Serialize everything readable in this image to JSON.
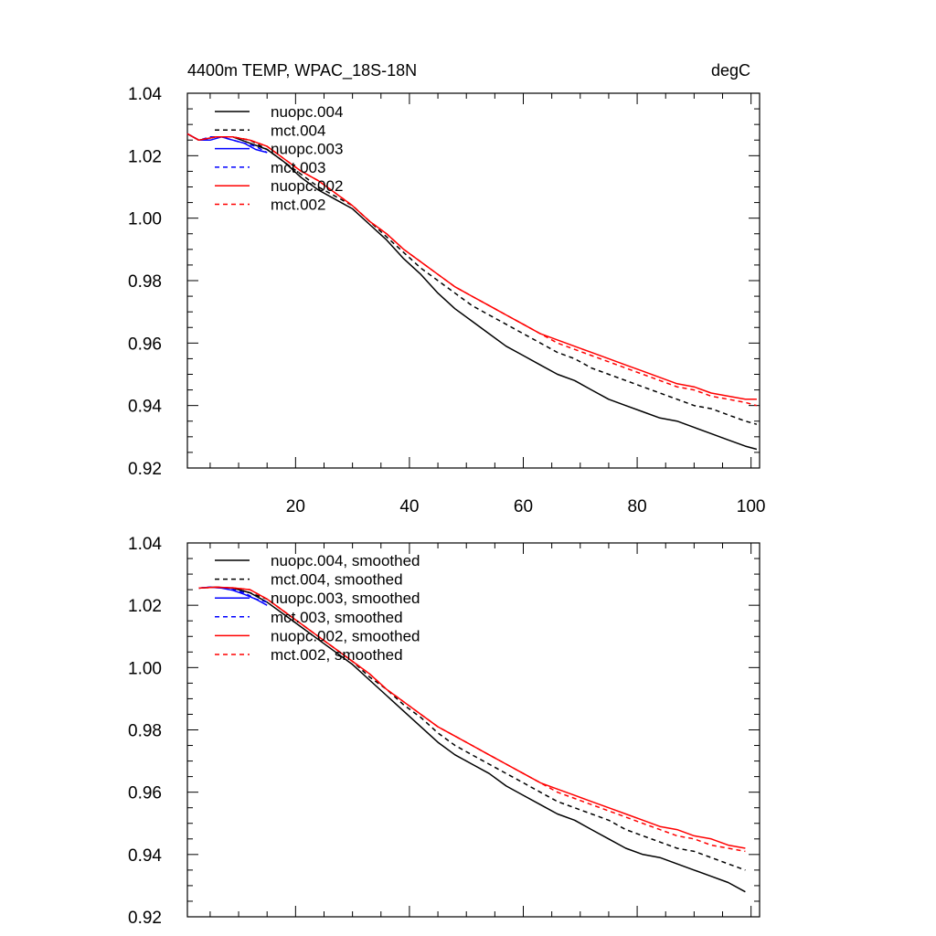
{
  "chart_data": [
    {
      "type": "line",
      "title_left": "4400m TEMP, WPAC_18S-18N",
      "title_right": "degC",
      "xlabel": "",
      "ylabel": "",
      "xlim": [
        1,
        101.5
      ],
      "ylim": [
        0.92,
        1.04
      ],
      "x_ticks": [
        20,
        40,
        60,
        80,
        100
      ],
      "y_ticks": [
        0.92,
        0.94,
        0.96,
        0.98,
        1.0,
        1.02,
        1.04
      ],
      "y_tick_labels": [
        "0.92",
        "0.94",
        "0.96",
        "0.98",
        "1.00",
        "1.02",
        "1.04"
      ],
      "x_tick_labels": [
        "20",
        "40",
        "60",
        "80",
        "100"
      ],
      "legend_position": "top-left",
      "series": [
        {
          "name": "nuopc.004",
          "color": "#000000",
          "dash": "solid",
          "x": [
            1,
            3,
            6,
            9,
            12,
            15,
            18,
            21,
            24,
            27,
            30,
            33,
            36,
            39,
            42,
            45,
            48,
            51,
            54,
            57,
            60,
            63,
            66,
            69,
            72,
            75,
            78,
            81,
            84,
            87,
            90,
            93,
            96,
            99,
            101
          ],
          "y": [
            1.027,
            1.025,
            1.026,
            1.026,
            1.024,
            1.022,
            1.018,
            1.013,
            1.009,
            1.006,
            1.003,
            0.998,
            0.993,
            0.987,
            0.982,
            0.976,
            0.971,
            0.967,
            0.963,
            0.959,
            0.956,
            0.953,
            0.95,
            0.948,
            0.945,
            0.942,
            0.94,
            0.938,
            0.936,
            0.935,
            0.933,
            0.931,
            0.929,
            0.927,
            0.926
          ]
        },
        {
          "name": "mct.004",
          "color": "#000000",
          "dash": "dashed",
          "x": [
            1,
            3,
            6,
            9,
            12,
            15,
            18,
            21,
            24,
            27,
            30,
            33,
            36,
            39,
            42,
            45,
            48,
            51,
            54,
            57,
            60,
            63,
            66,
            69,
            72,
            75,
            78,
            81,
            84,
            87,
            90,
            93,
            96,
            99,
            101
          ],
          "y": [
            1.027,
            1.025,
            1.026,
            1.026,
            1.025,
            1.022,
            1.018,
            1.014,
            1.01,
            1.007,
            1.004,
            0.999,
            0.994,
            0.989,
            0.984,
            0.98,
            0.976,
            0.972,
            0.969,
            0.966,
            0.963,
            0.96,
            0.957,
            0.955,
            0.952,
            0.95,
            0.948,
            0.946,
            0.944,
            0.942,
            0.94,
            0.939,
            0.937,
            0.935,
            0.934
          ]
        },
        {
          "name": "nuopc.003",
          "color": "#0000ff",
          "dash": "solid",
          "x": [
            1,
            3,
            5,
            7,
            9,
            11,
            13,
            15
          ],
          "y": [
            1.027,
            1.025,
            1.025,
            1.026,
            1.025,
            1.024,
            1.022,
            1.021
          ]
        },
        {
          "name": "mct.003",
          "color": "#0000ff",
          "dash": "dashed",
          "x": [
            1,
            3,
            5,
            7,
            9,
            11,
            13,
            15
          ],
          "y": [
            1.027,
            1.025,
            1.026,
            1.026,
            1.025,
            1.024,
            1.023,
            1.021
          ]
        },
        {
          "name": "nuopc.002",
          "color": "#ff0000",
          "dash": "solid",
          "x": [
            1,
            3,
            6,
            9,
            12,
            15,
            18,
            21,
            24,
            27,
            30,
            33,
            36,
            39,
            42,
            45,
            48,
            51,
            54,
            57,
            60,
            63,
            66,
            69,
            72,
            75,
            78,
            81,
            84,
            87,
            90,
            93,
            96,
            99,
            101
          ],
          "y": [
            1.027,
            1.025,
            1.026,
            1.026,
            1.025,
            1.023,
            1.019,
            1.015,
            1.012,
            1.008,
            1.004,
            0.999,
            0.995,
            0.99,
            0.986,
            0.982,
            0.978,
            0.975,
            0.972,
            0.969,
            0.966,
            0.963,
            0.961,
            0.959,
            0.957,
            0.955,
            0.953,
            0.951,
            0.949,
            0.947,
            0.946,
            0.944,
            0.943,
            0.942,
            0.942
          ]
        },
        {
          "name": "mct.002",
          "color": "#ff0000",
          "dash": "dashed",
          "x": [
            1,
            3,
            6,
            9,
            12,
            15,
            18,
            21,
            24,
            27,
            30,
            33,
            36,
            39,
            42,
            45,
            48,
            51,
            54,
            57,
            60,
            63,
            66,
            69,
            72,
            75,
            78,
            81,
            84,
            87,
            90,
            93,
            96,
            99,
            101
          ],
          "y": [
            1.027,
            1.025,
            1.026,
            1.026,
            1.025,
            1.023,
            1.019,
            1.015,
            1.012,
            1.008,
            1.004,
            0.999,
            0.995,
            0.99,
            0.986,
            0.982,
            0.978,
            0.975,
            0.972,
            0.969,
            0.966,
            0.963,
            0.96,
            0.958,
            0.956,
            0.954,
            0.952,
            0.95,
            0.948,
            0.946,
            0.945,
            0.943,
            0.942,
            0.941,
            0.94
          ]
        }
      ]
    },
    {
      "type": "line",
      "xlabel": "",
      "ylabel": "",
      "xlim": [
        1,
        101.5
      ],
      "ylim": [
        0.92,
        1.04
      ],
      "x_ticks": [
        20,
        40,
        60,
        80,
        100
      ],
      "y_ticks": [
        0.92,
        0.94,
        0.96,
        0.98,
        1.0,
        1.02,
        1.04
      ],
      "y_tick_labels": [
        "0.92",
        "0.94",
        "0.96",
        "0.98",
        "1.00",
        "1.02",
        "1.04"
      ],
      "legend_position": "top-left",
      "series": [
        {
          "name": "nuopc.004, smoothed",
          "color": "#000000",
          "dash": "solid",
          "x": [
            3,
            6,
            9,
            12,
            15,
            18,
            21,
            24,
            27,
            30,
            33,
            36,
            39,
            42,
            45,
            48,
            51,
            54,
            57,
            60,
            63,
            66,
            69,
            72,
            75,
            78,
            81,
            84,
            87,
            90,
            93,
            96,
            99
          ],
          "y": [
            1.0255,
            1.0258,
            1.0255,
            1.024,
            1.021,
            1.017,
            1.013,
            1.009,
            1.005,
            1.001,
            0.996,
            0.991,
            0.986,
            0.981,
            0.976,
            0.972,
            0.969,
            0.966,
            0.962,
            0.959,
            0.956,
            0.953,
            0.951,
            0.948,
            0.945,
            0.942,
            0.94,
            0.939,
            0.937,
            0.935,
            0.933,
            0.931,
            0.928
          ]
        },
        {
          "name": "mct.004, smoothed",
          "color": "#000000",
          "dash": "dashed",
          "x": [
            3,
            6,
            9,
            12,
            15,
            18,
            21,
            24,
            27,
            30,
            33,
            36,
            39,
            42,
            45,
            48,
            51,
            54,
            57,
            60,
            63,
            66,
            69,
            72,
            75,
            78,
            81,
            84,
            87,
            90,
            93,
            96,
            99
          ],
          "y": [
            1.0255,
            1.0258,
            1.0255,
            1.024,
            1.022,
            1.018,
            1.014,
            1.01,
            1.006,
            1.002,
            0.997,
            0.993,
            0.988,
            0.984,
            0.979,
            0.975,
            0.972,
            0.969,
            0.966,
            0.963,
            0.96,
            0.957,
            0.955,
            0.953,
            0.951,
            0.948,
            0.946,
            0.944,
            0.942,
            0.941,
            0.939,
            0.937,
            0.935
          ]
        },
        {
          "name": "nuopc.003, smoothed",
          "color": "#0000ff",
          "dash": "solid",
          "x": [
            3,
            5,
            7,
            9,
            11,
            13,
            15
          ],
          "y": [
            1.0255,
            1.0258,
            1.0255,
            1.0248,
            1.0235,
            1.022,
            1.02
          ]
        },
        {
          "name": "mct.003, smoothed",
          "color": "#0000ff",
          "dash": "dashed",
          "x": [
            3,
            5,
            7,
            9,
            11,
            13,
            15
          ],
          "y": [
            1.0255,
            1.0258,
            1.0256,
            1.025,
            1.024,
            1.022,
            1.021
          ]
        },
        {
          "name": "nuopc.002, smoothed",
          "color": "#ff0000",
          "dash": "solid",
          "x": [
            3,
            6,
            9,
            12,
            15,
            18,
            21,
            24,
            27,
            30,
            33,
            36,
            39,
            42,
            45,
            48,
            51,
            54,
            57,
            60,
            63,
            66,
            69,
            72,
            75,
            78,
            81,
            84,
            87,
            90,
            93,
            96,
            99
          ],
          "y": [
            1.0255,
            1.0258,
            1.0256,
            1.025,
            1.022,
            1.018,
            1.014,
            1.01,
            1.006,
            1.002,
            0.998,
            0.993,
            0.989,
            0.985,
            0.981,
            0.978,
            0.975,
            0.972,
            0.969,
            0.966,
            0.963,
            0.961,
            0.959,
            0.957,
            0.955,
            0.953,
            0.951,
            0.949,
            0.948,
            0.946,
            0.945,
            0.943,
            0.942
          ]
        },
        {
          "name": "mct.002, smoothed",
          "color": "#ff0000",
          "dash": "dashed",
          "x": [
            3,
            6,
            9,
            12,
            15,
            18,
            21,
            24,
            27,
            30,
            33,
            36,
            39,
            42,
            45,
            48,
            51,
            54,
            57,
            60,
            63,
            66,
            69,
            72,
            75,
            78,
            81,
            84,
            87,
            90,
            93,
            96,
            99
          ],
          "y": [
            1.0255,
            1.0258,
            1.0256,
            1.025,
            1.022,
            1.018,
            1.014,
            1.01,
            1.006,
            1.002,
            0.998,
            0.993,
            0.989,
            0.985,
            0.981,
            0.978,
            0.975,
            0.972,
            0.969,
            0.966,
            0.963,
            0.96,
            0.958,
            0.956,
            0.954,
            0.952,
            0.95,
            0.948,
            0.946,
            0.945,
            0.943,
            0.942,
            0.941
          ]
        }
      ]
    }
  ]
}
